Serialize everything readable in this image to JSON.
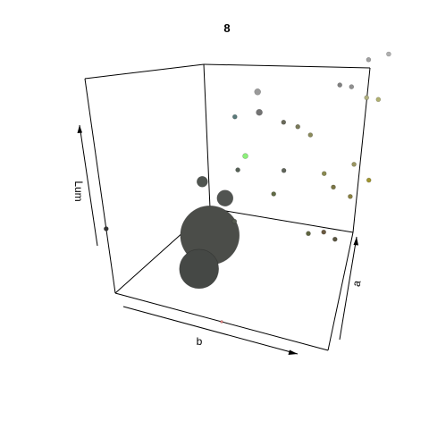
{
  "chart_data": {
    "type": "scatter",
    "projection": "3d",
    "title": "8",
    "xlabel": "b",
    "ylabel": "a",
    "zlabel": "Lum",
    "grid": false,
    "legend": "none",
    "points": [
      {
        "b": 0.0,
        "a": 0.0,
        "lum": 0.3,
        "size": 2.5,
        "color": "#333333"
      },
      {
        "b": 0.4,
        "a": 0.05,
        "lum": 0.2,
        "size": 22,
        "color": "#454845"
      },
      {
        "b": 0.45,
        "a": 0.1,
        "lum": 0.35,
        "size": 33,
        "color": "#4b4d49"
      },
      {
        "b": 0.55,
        "a": 0.1,
        "lum": 0.55,
        "size": 9,
        "color": "#515451"
      },
      {
        "b": 0.45,
        "a": 0.1,
        "lum": 0.6,
        "size": 6,
        "color": "#505550"
      },
      {
        "b": 0.58,
        "a": 0.1,
        "lum": 0.45,
        "size": 2.5,
        "color": "#555a50"
      },
      {
        "b": 0.58,
        "a": 0.2,
        "lum": 0.65,
        "size": 2.5,
        "color": "#556055"
      },
      {
        "b": 0.6,
        "a": 0.25,
        "lum": 0.7,
        "size": 3,
        "color": "#8cf07a"
      },
      {
        "b": 0.66,
        "a": 0.35,
        "lum": 0.5,
        "size": 2.5,
        "color": "#606a45"
      },
      {
        "b": 0.7,
        "a": 0.4,
        "lum": 0.6,
        "size": 2.5,
        "color": "#60655a"
      },
      {
        "b": 0.75,
        "a": 0.45,
        "lum": 0.3,
        "size": 2.5,
        "color": "#5f6540"
      },
      {
        "b": 0.8,
        "a": 0.5,
        "lum": 0.3,
        "size": 2.5,
        "color": "#6a5a40"
      },
      {
        "b": 0.85,
        "a": 0.5,
        "lum": 0.28,
        "size": 2.5,
        "color": "#5a5540"
      },
      {
        "b": 0.55,
        "a": 0.3,
        "lum": 0.85,
        "size": 2.5,
        "color": "#5a7a7a"
      },
      {
        "b": 0.62,
        "a": 0.4,
        "lum": 0.85,
        "size": 3.5,
        "color": "#737373"
      },
      {
        "b": 0.6,
        "a": 0.45,
        "lum": 0.92,
        "size": 3.5,
        "color": "#9a9a9a"
      },
      {
        "b": 0.68,
        "a": 0.5,
        "lum": 0.78,
        "size": 2.5,
        "color": "#6a6a5a"
      },
      {
        "b": 0.72,
        "a": 0.55,
        "lum": 0.75,
        "size": 2.5,
        "color": "#7a7a5a"
      },
      {
        "b": 0.75,
        "a": 0.6,
        "lum": 0.7,
        "size": 2.5,
        "color": "#8a8a5a"
      },
      {
        "b": 0.78,
        "a": 0.62,
        "lum": 0.52,
        "size": 2.5,
        "color": "#8a8a50"
      },
      {
        "b": 0.8,
        "a": 0.65,
        "lum": 0.45,
        "size": 2.5,
        "color": "#7a7545"
      },
      {
        "b": 0.85,
        "a": 0.7,
        "lum": 0.4,
        "size": 2.5,
        "color": "#8a8040"
      },
      {
        "b": 0.88,
        "a": 0.72,
        "lum": 0.55,
        "size": 2.5,
        "color": "#9a9560"
      },
      {
        "b": 0.9,
        "a": 0.8,
        "lum": 0.45,
        "size": 2.5,
        "color": "#a09530"
      },
      {
        "b": 0.85,
        "a": 0.75,
        "lum": 0.9,
        "size": 2.5,
        "color": "#808080"
      },
      {
        "b": 0.88,
        "a": 0.8,
        "lum": 0.88,
        "size": 2.5,
        "color": "#909090"
      },
      {
        "b": 0.92,
        "a": 0.85,
        "lum": 0.82,
        "size": 2.5,
        "color": "#b0b080"
      },
      {
        "b": 0.95,
        "a": 0.9,
        "lum": 0.8,
        "size": 2.5,
        "color": "#b0b070"
      },
      {
        "b": 0.93,
        "a": 0.9,
        "lum": 0.98,
        "size": 2.5,
        "color": "#a0a0a0"
      },
      {
        "b": 0.98,
        "a": 1.0,
        "lum": 0.98,
        "size": 2.5,
        "color": "#b0b0b0"
      },
      {
        "b": 0.5,
        "a": 0.0,
        "lum": 0.0,
        "size": 1.5,
        "color": "#e08080"
      }
    ]
  }
}
